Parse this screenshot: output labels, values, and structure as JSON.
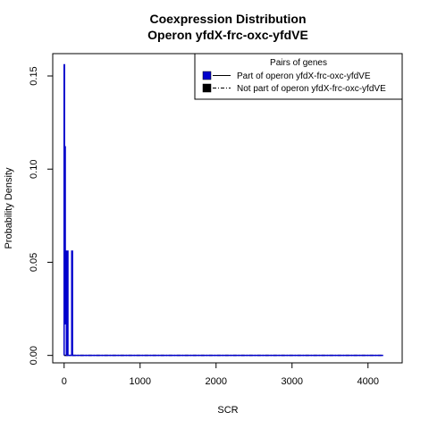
{
  "chart_data": {
    "type": "line",
    "title": "Coexpression Distribution",
    "subtitle": "Operon yfdX-frc-oxc-yfdVE",
    "xlabel": "SCR",
    "ylabel": "Probability Density",
    "xlim": [
      -150,
      4450
    ],
    "ylim": [
      -0.004,
      0.162
    ],
    "x_ticks": [
      0,
      1000,
      2000,
      3000,
      4000
    ],
    "x_tick_labels": [
      "0",
      "1000",
      "2000",
      "3000",
      "4000"
    ],
    "y_ticks": [
      0.0,
      0.05,
      0.1,
      0.15
    ],
    "y_tick_labels": [
      "0.00",
      "0.05",
      "0.10",
      "0.15"
    ],
    "grid": false,
    "legend": {
      "title": "Pairs of genes",
      "position": "top-right",
      "entries": [
        "Part of operon yfdX-frc-oxc-yfdVE",
        "Not part of operon yfdX-frc-oxc-yfdVE"
      ]
    },
    "series": [
      {
        "name": "Part of operon yfdX-frc-oxc-yfdVE",
        "color": "#0000cc",
        "style": "solid",
        "x": [
          0,
          0,
          5,
          5,
          10,
          10,
          15,
          15,
          20,
          20,
          30,
          30,
          40,
          40,
          50,
          50,
          55,
          55,
          60,
          60,
          100,
          100,
          110,
          110,
          115,
          115,
          4200
        ],
        "y": [
          0,
          0.156,
          0.156,
          0.017,
          0.017,
          0.112,
          0.112,
          0.017,
          0.017,
          0.056,
          0.056,
          0,
          0,
          0.056,
          0.056,
          0,
          0,
          0,
          0,
          0,
          0,
          0.056,
          0.056,
          0,
          0,
          0,
          0
        ]
      },
      {
        "name": "Not part of operon yfdX-frc-oxc-yfdVE",
        "color": "#000000",
        "style": "dashed",
        "x": [
          0,
          4200
        ],
        "y": [
          0.0,
          0.0
        ]
      }
    ]
  }
}
